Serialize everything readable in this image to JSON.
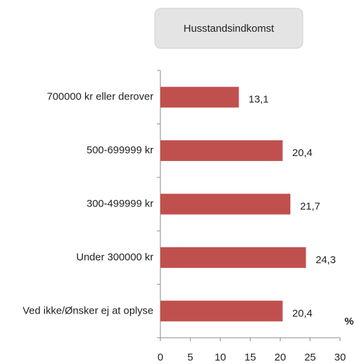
{
  "chart_data": {
    "type": "bar",
    "orientation": "horizontal",
    "title": "Husstandsindkomst",
    "x_label": "%",
    "categories": [
      "700000 kr eller derover",
      "500-699999 kr",
      "300-499999 kr",
      "Under 300000 kr",
      "Ved ikke/Ønsker ej at oplyse"
    ],
    "values": [
      13.1,
      20.4,
      21.7,
      24.3,
      20.4
    ],
    "value_labels": [
      "13,1",
      "20,4",
      "21,7",
      "24,3",
      "20,4"
    ],
    "color": "#c0504d",
    "xlim": [
      0,
      30
    ],
    "xticks": [
      0,
      5,
      10,
      15,
      20,
      25,
      30
    ],
    "grid": false
  }
}
